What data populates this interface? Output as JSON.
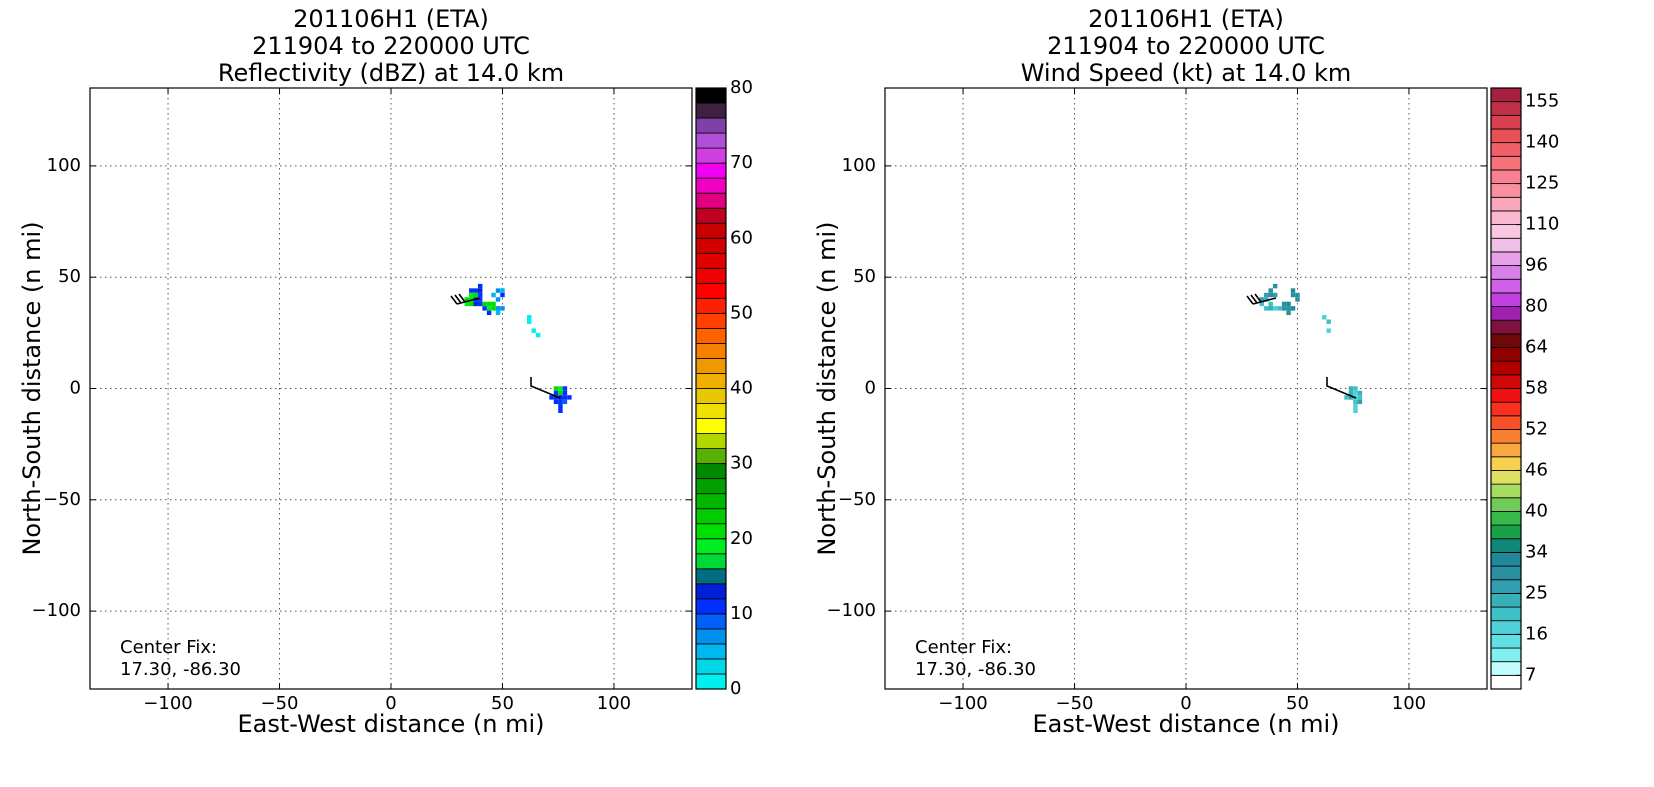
{
  "chart_data": [
    {
      "type": "heatmap",
      "title": [
        "201106H1 (ETA)",
        "211904 to 220000 UTC",
        "Reflectivity (dBZ) at 14.0 km"
      ],
      "x_label": "East-West distance (n mi)",
      "y_label": "North-South distance (n mi)",
      "annotation": [
        "Center Fix:",
        "17.30, -86.30"
      ],
      "xlim": [
        -135,
        135
      ],
      "ylim": [
        -135,
        135
      ],
      "xticks": [
        {
          "value": -100,
          "label": "−100"
        },
        {
          "value": -50,
          "label": "−50"
        },
        0,
        50,
        100
      ],
      "yticks": [
        {
          "value": -100,
          "label": "−100"
        },
        {
          "value": -50,
          "label": "−50"
        },
        0,
        50,
        100
      ],
      "grid": true,
      "cell_size": 2,
      "cells": [
        [
          36,
          44,
          11
        ],
        [
          38,
          44,
          11
        ],
        [
          40,
          46,
          10
        ],
        [
          40,
          44,
          12
        ],
        [
          36,
          42,
          19
        ],
        [
          38,
          42,
          20
        ],
        [
          40,
          42,
          11
        ],
        [
          34,
          40,
          20
        ],
        [
          36,
          40,
          21
        ],
        [
          38,
          40,
          11
        ],
        [
          40,
          40,
          10
        ],
        [
          34,
          38,
          19
        ],
        [
          36,
          38,
          20
        ],
        [
          38,
          38,
          12
        ],
        [
          40,
          38,
          11
        ],
        [
          42,
          38,
          20
        ],
        [
          44,
          38,
          21
        ],
        [
          46,
          38,
          20
        ],
        [
          42,
          36,
          11
        ],
        [
          44,
          36,
          19
        ],
        [
          46,
          36,
          20
        ],
        [
          48,
          36,
          6
        ],
        [
          50,
          36,
          7
        ],
        [
          44,
          34,
          10
        ],
        [
          48,
          34,
          5
        ],
        [
          46,
          42,
          5
        ],
        [
          48,
          44,
          6
        ],
        [
          50,
          44,
          5
        ],
        [
          48,
          40,
          6
        ],
        [
          50,
          42,
          11
        ],
        [
          62,
          32,
          1
        ],
        [
          62,
          30,
          1
        ],
        [
          64,
          26,
          1
        ],
        [
          66,
          24,
          1
        ],
        [
          76,
          0,
          19
        ],
        [
          74,
          0,
          20
        ],
        [
          78,
          0,
          11
        ],
        [
          74,
          -2,
          11
        ],
        [
          76,
          -2,
          21
        ],
        [
          78,
          -2,
          11
        ],
        [
          72,
          -4,
          10
        ],
        [
          74,
          -4,
          11
        ],
        [
          76,
          -4,
          12
        ],
        [
          78,
          -4,
          11
        ],
        [
          80,
          -4,
          10
        ],
        [
          74,
          -6,
          11
        ],
        [
          76,
          -6,
          10
        ],
        [
          78,
          -6,
          8
        ],
        [
          76,
          -8,
          11
        ],
        [
          76,
          -10,
          10
        ]
      ],
      "colorbar": {
        "boundaries": [
          0,
          2,
          4,
          6,
          8,
          10,
          12,
          14,
          16,
          18,
          20,
          22,
          24,
          26,
          28,
          30,
          32,
          34,
          36,
          38,
          40,
          42,
          44,
          46,
          48,
          50,
          52,
          54,
          56,
          58,
          60,
          62,
          64,
          66,
          68,
          70,
          72,
          74,
          76,
          78,
          80
        ],
        "colors": [
          "#00f0f0",
          "#00d8e8",
          "#00b8f0",
          "#0090f0",
          "#0060f8",
          "#0030ff",
          "#0020d8",
          "#006e80",
          "#00d838",
          "#00ee20",
          "#00e000",
          "#00cc00",
          "#00b800",
          "#00a000",
          "#008800",
          "#58b000",
          "#b0d800",
          "#ffff00",
          "#f0e000",
          "#e8c800",
          "#f0b000",
          "#f09800",
          "#f88000",
          "#ff6000",
          "#ff4000",
          "#ff2000",
          "#ff0000",
          "#f00000",
          "#e00000",
          "#d00000",
          "#c80000",
          "#c00020",
          "#e00080",
          "#f000c0",
          "#f000f0",
          "#d040e0",
          "#b050d8",
          "#8040a8",
          "#402040",
          "#000000"
        ],
        "ticks": [
          0,
          10,
          20,
          30,
          40,
          50,
          60,
          70,
          80
        ]
      }
    },
    {
      "type": "heatmap",
      "title": [
        "201106H1 (ETA)",
        "211904 to 220000 UTC",
        "Wind Speed (kt) at 14.0 km"
      ],
      "x_label": "East-West distance (n mi)",
      "y_label": "North-South distance (n mi)",
      "annotation": [
        "Center Fix:",
        "17.30, -86.30"
      ],
      "xlim": [
        -135,
        135
      ],
      "ylim": [
        -135,
        135
      ],
      "xticks": [
        {
          "value": -100,
          "label": "−100"
        },
        {
          "value": -50,
          "label": "−50"
        },
        0,
        50,
        100
      ],
      "yticks": [
        {
          "value": -100,
          "label": "−100"
        },
        {
          "value": -50,
          "label": "−50"
        },
        0,
        50,
        100
      ],
      "grid": true,
      "cell_size": 2,
      "cells": [
        [
          38,
          44,
          28
        ],
        [
          40,
          46,
          30
        ],
        [
          36,
          42,
          27
        ],
        [
          38,
          42,
          29
        ],
        [
          40,
          42,
          25
        ],
        [
          34,
          40,
          26
        ],
        [
          36,
          40,
          22
        ],
        [
          38,
          38,
          20
        ],
        [
          34,
          38,
          21
        ],
        [
          36,
          36,
          19
        ],
        [
          38,
          36,
          22
        ],
        [
          42,
          36,
          20
        ],
        [
          44,
          38,
          29
        ],
        [
          46,
          38,
          31
        ],
        [
          44,
          36,
          30
        ],
        [
          46,
          36,
          29
        ],
        [
          48,
          36,
          32
        ],
        [
          46,
          34,
          30
        ],
        [
          40,
          36,
          18
        ],
        [
          48,
          42,
          30
        ],
        [
          50,
          42,
          29
        ],
        [
          48,
          44,
          31
        ],
        [
          50,
          40,
          28
        ],
        [
          62,
          32,
          18
        ],
        [
          64,
          30,
          19
        ],
        [
          64,
          26,
          17
        ],
        [
          74,
          0,
          22
        ],
        [
          76,
          0,
          20
        ],
        [
          74,
          -2,
          23
        ],
        [
          76,
          -2,
          18
        ],
        [
          78,
          -2,
          24
        ],
        [
          72,
          -4,
          21
        ],
        [
          74,
          -4,
          25
        ],
        [
          76,
          -4,
          17
        ],
        [
          78,
          -4,
          19
        ],
        [
          76,
          -6,
          20
        ],
        [
          78,
          -6,
          26
        ],
        [
          76,
          -8,
          18
        ],
        [
          76,
          -10,
          16
        ]
      ],
      "colorbar": {
        "boundaries": [
          4,
          7,
          10,
          13,
          16,
          19,
          22,
          25,
          28,
          31,
          34,
          36,
          38,
          40,
          42,
          44,
          46,
          48,
          50,
          52,
          54,
          56,
          58,
          60,
          62,
          64,
          69,
          75,
          80,
          85,
          91,
          96,
          101,
          105,
          110,
          115,
          120,
          125,
          130,
          135,
          140,
          145,
          150,
          155,
          160
        ],
        "colors": [
          "#ffffff",
          "#c0fcfc",
          "#80f0f0",
          "#60e0e0",
          "#50d0d8",
          "#40c0c8",
          "#38b0b8",
          "#30a0b0",
          "#2890a0",
          "#208898",
          "#108878",
          "#18a048",
          "#38b848",
          "#70cc58",
          "#a8dc60",
          "#e0e060",
          "#f8d050",
          "#f8a840",
          "#f88030",
          "#f85028",
          "#f83020",
          "#f01010",
          "#d00808",
          "#b00000",
          "#900000",
          "#700808",
          "#801040",
          "#a020b0",
          "#c040e0",
          "#d060e8",
          "#d880e8",
          "#e8a0e8",
          "#f0c0e8",
          "#f8c8e0",
          "#f8b8d0",
          "#f8a8b8",
          "#f890a0",
          "#f88090",
          "#f87078",
          "#f06068",
          "#e85058",
          "#d84050",
          "#c03048",
          "#a82040",
          "#981040"
        ],
        "ticks": [
          7,
          16,
          25,
          34,
          40,
          46,
          52,
          58,
          64,
          80,
          96,
          110,
          125,
          140,
          155
        ]
      }
    }
  ]
}
